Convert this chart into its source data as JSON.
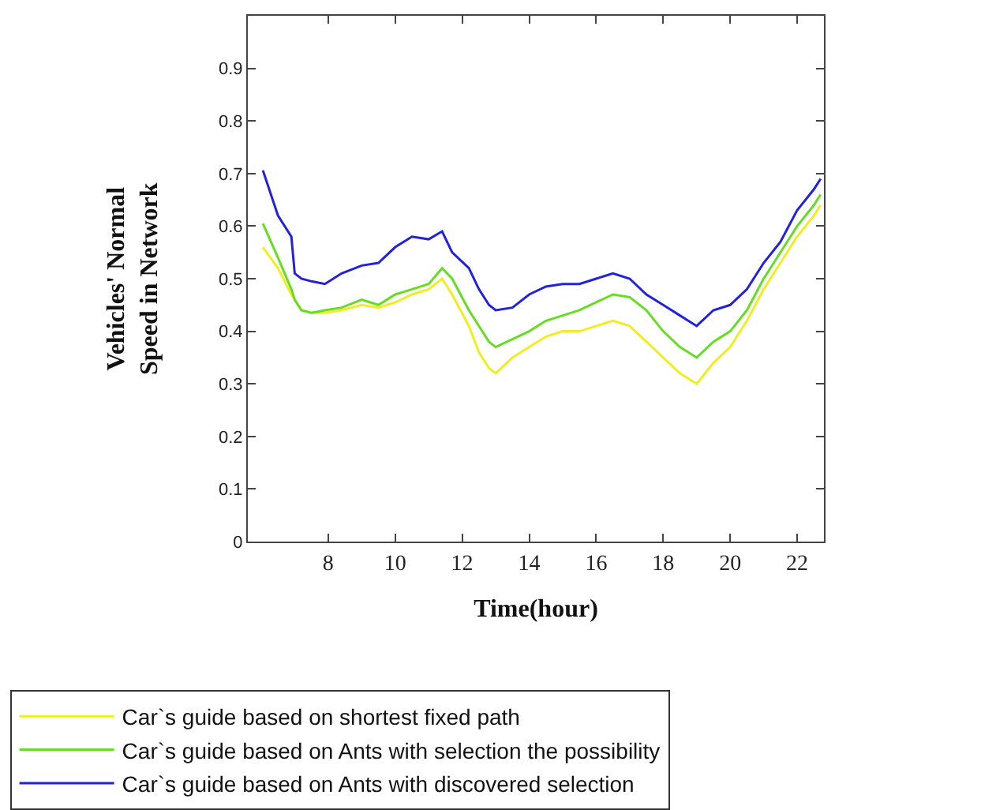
{
  "chart_data": {
    "type": "line",
    "xlabel": "Time(hour)",
    "ylabel": "Vehicles' Normal\nSpeed in Network",
    "x": [
      6.05,
      6.5,
      6.9,
      7.0,
      7.2,
      7.5,
      7.9,
      8.4,
      9,
      9.5,
      10,
      10.5,
      11,
      11.4,
      11.7,
      12.2,
      12.5,
      12.8,
      13,
      13.5,
      14,
      14.5,
      15,
      15.5,
      16,
      16.5,
      17,
      17.5,
      18,
      18.5,
      19,
      19.5,
      20,
      20.5,
      21,
      21.5,
      22,
      22.5,
      22.7
    ],
    "series": [
      {
        "name": "Car`s guide based on shortest fixed path",
        "color": "#eeee22",
        "values": [
          0.56,
          0.52,
          0.47,
          0.46,
          0.44,
          0.435,
          0.435,
          0.44,
          0.45,
          0.445,
          0.455,
          0.47,
          0.48,
          0.5,
          0.47,
          0.41,
          0.36,
          0.33,
          0.32,
          0.35,
          0.37,
          0.39,
          0.4,
          0.4,
          0.41,
          0.42,
          0.41,
          0.38,
          0.35,
          0.32,
          0.3,
          0.34,
          0.37,
          0.42,
          0.48,
          0.53,
          0.58,
          0.62,
          0.64
        ]
      },
      {
        "name": "Car`s guide based on Ants with selection the possibility",
        "color": "#66dd22",
        "values": [
          0.605,
          0.54,
          0.48,
          0.46,
          0.44,
          0.435,
          0.44,
          0.445,
          0.46,
          0.45,
          0.47,
          0.48,
          0.49,
          0.52,
          0.5,
          0.44,
          0.41,
          0.38,
          0.37,
          0.385,
          0.4,
          0.42,
          0.43,
          0.44,
          0.455,
          0.47,
          0.465,
          0.44,
          0.4,
          0.37,
          0.35,
          0.38,
          0.4,
          0.44,
          0.5,
          0.55,
          0.6,
          0.64,
          0.66
        ]
      },
      {
        "name": "Car`s guide based on Ants with discovered selection",
        "color": "#2222dd",
        "values": [
          0.706,
          0.62,
          0.58,
          0.51,
          0.5,
          0.495,
          0.49,
          0.51,
          0.525,
          0.53,
          0.56,
          0.58,
          0.575,
          0.59,
          0.55,
          0.52,
          0.48,
          0.45,
          0.44,
          0.445,
          0.47,
          0.485,
          0.49,
          0.49,
          0.5,
          0.51,
          0.5,
          0.47,
          0.45,
          0.43,
          0.41,
          0.44,
          0.45,
          0.48,
          0.53,
          0.57,
          0.63,
          0.67,
          0.69
        ]
      }
    ],
    "xlim": [
      5.6,
      22.8
    ],
    "xticks": [
      8,
      10,
      12,
      14,
      16,
      18,
      20,
      22
    ],
    "ylim": [
      0,
      1
    ],
    "yticks": [
      0,
      0.1,
      0.2,
      0.3,
      0.4,
      0.5,
      0.6,
      0.7,
      0.8,
      0.9
    ],
    "legend": "bottom",
    "marker": "none",
    "line_style": "solid"
  }
}
